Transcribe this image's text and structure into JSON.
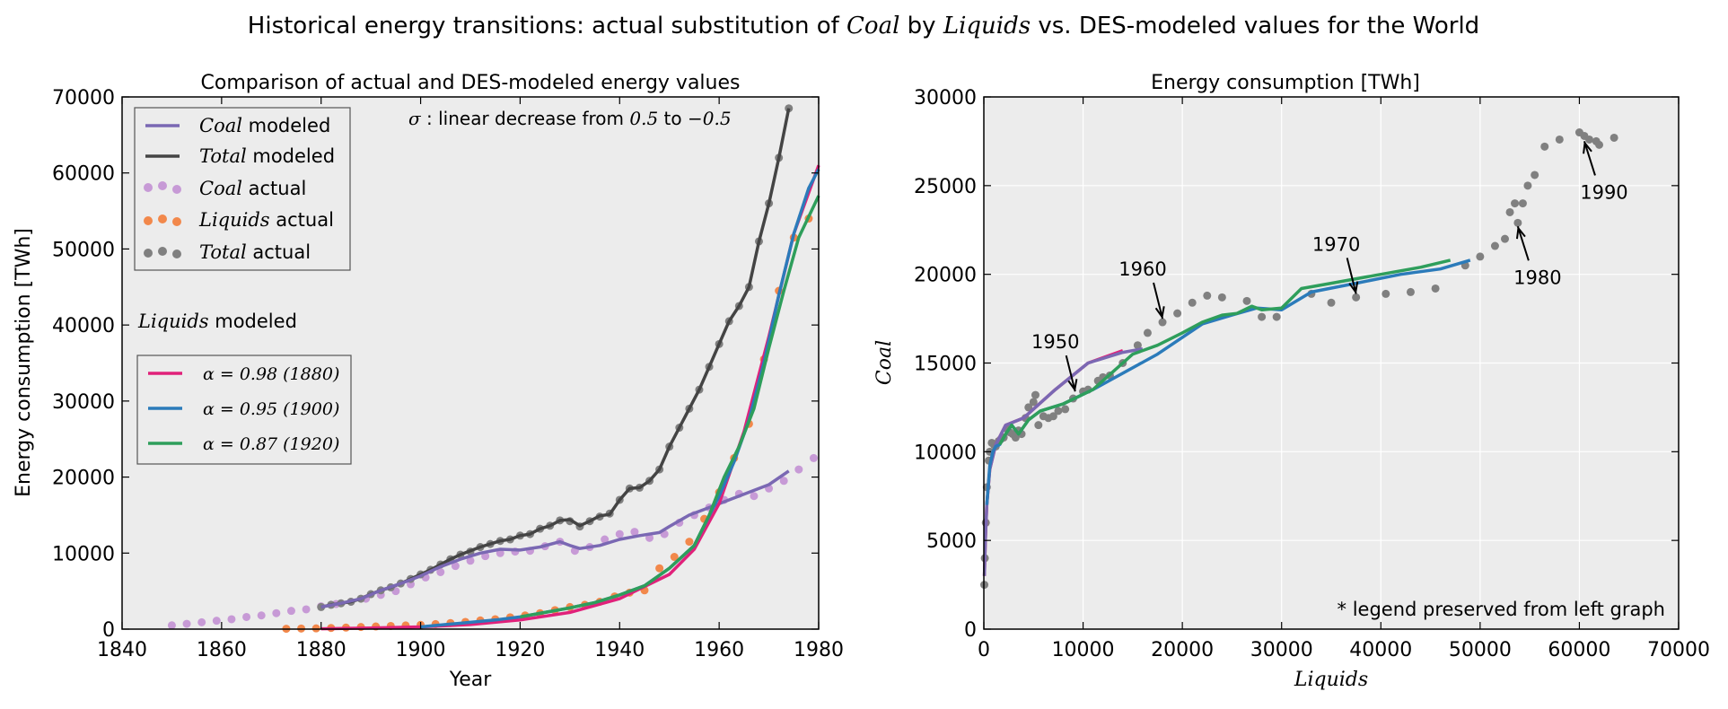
{
  "figure": {
    "title_pre": "Historical energy transitions: actual substitution of ",
    "title_coal": "Coal",
    "title_mid": " by ",
    "title_liquids": "Liquids",
    "title_post": " vs. DES-modeled values for the World"
  },
  "chart_data": [
    {
      "type": "line",
      "title": "Comparison of actual and DES-modeled energy values",
      "xlabel": "Year",
      "ylabel": "Energy consumption [TWh]",
      "xlim": [
        1840,
        1980
      ],
      "ylim": [
        0,
        70000
      ],
      "xticks": [
        "1840",
        "1860",
        "1880",
        "1900",
        "1920",
        "1940",
        "1960",
        "1980"
      ],
      "yticks": [
        "0",
        "10000",
        "20000",
        "30000",
        "40000",
        "50000",
        "60000",
        "70000"
      ],
      "grid": false,
      "background": "#ececec",
      "annotation": {
        "sigma": "σ",
        "pre": " : linear decrease from ",
        "a": "0.5",
        "mid": " to ",
        "b": "−0.5"
      },
      "legend1": {
        "placement": "top-left",
        "entries": [
          {
            "name": "Coal",
            "suffix": " modeled",
            "kind": "line",
            "color": "#7a68b3"
          },
          {
            "name": "Total",
            "suffix": " modeled",
            "kind": "line",
            "color": "#444444"
          },
          {
            "name": "Coal",
            "suffix": " actual",
            "kind": "dots",
            "color": "#c79ad6"
          },
          {
            "name": "Liquids",
            "suffix": " actual",
            "kind": "dots",
            "color": "#f2884b"
          },
          {
            "name": "Total",
            "suffix": " actual",
            "kind": "dots",
            "color": "#808080"
          }
        ]
      },
      "legend2": {
        "title_name": "Liquids",
        "title_suffix": " modeled",
        "placement": "center-left",
        "entries": [
          {
            "label": "α = 0.98 (1880)",
            "color": "#e0217a"
          },
          {
            "label": "α = 0.95 (1900)",
            "color": "#2b7bba"
          },
          {
            "label": "α = 0.87 (1920)",
            "color": "#2e9e5b"
          }
        ]
      },
      "series": [
        {
          "name": "Coal actual",
          "color": "#c79ad6",
          "kind": "scatter",
          "x": [
            1850,
            1853,
            1856,
            1859,
            1862,
            1865,
            1868,
            1871,
            1874,
            1877,
            1880,
            1883,
            1886,
            1889,
            1892,
            1895,
            1898,
            1901,
            1904,
            1907,
            1910,
            1913,
            1916,
            1919,
            1922,
            1925,
            1928,
            1931,
            1934,
            1937,
            1940,
            1943,
            1946,
            1949,
            1952,
            1955,
            1958,
            1961,
            1964,
            1967,
            1970,
            1973,
            1976,
            1979
          ],
          "y": [
            500,
            700,
            900,
            1100,
            1300,
            1600,
            1800,
            2100,
            2400,
            2600,
            3000,
            3300,
            3600,
            4000,
            4500,
            5000,
            5900,
            6800,
            7500,
            8300,
            9000,
            9600,
            10000,
            10200,
            10300,
            10900,
            11500,
            10300,
            10800,
            11800,
            12500,
            12800,
            12000,
            12500,
            14000,
            15000,
            16000,
            17000,
            17800,
            17500,
            18500,
            19500,
            21000,
            22500
          ]
        },
        {
          "name": "Liquids actual",
          "color": "#f2884b",
          "kind": "scatter",
          "x": [
            1873,
            1876,
            1879,
            1882,
            1885,
            1888,
            1891,
            1894,
            1897,
            1900,
            1903,
            1906,
            1909,
            1912,
            1915,
            1918,
            1921,
            1924,
            1927,
            1930,
            1933,
            1936,
            1939,
            1942,
            1945,
            1948,
            1951,
            1954,
            1957,
            1960,
            1963,
            1966,
            1969,
            1972,
            1975,
            1978
          ],
          "y": [
            50,
            80,
            100,
            150,
            200,
            280,
            350,
            420,
            480,
            560,
            660,
            800,
            950,
            1150,
            1300,
            1550,
            1800,
            2100,
            2500,
            2900,
            3200,
            3600,
            4300,
            4800,
            5100,
            8000,
            9500,
            11500,
            14500,
            18000,
            22500,
            27000,
            35500,
            44500,
            51500,
            54000
          ]
        },
        {
          "name": "Total actual",
          "color": "#808080",
          "kind": "scatter",
          "x": [
            1880,
            1882,
            1884,
            1886,
            1888,
            1890,
            1892,
            1894,
            1896,
            1898,
            1900,
            1902,
            1904,
            1906,
            1908,
            1910,
            1912,
            1914,
            1916,
            1918,
            1920,
            1922,
            1924,
            1926,
            1928,
            1930,
            1932,
            1934,
            1936,
            1938,
            1940,
            1942,
            1944,
            1946,
            1948,
            1950,
            1952,
            1954,
            1956,
            1958,
            1960,
            1962,
            1964,
            1966,
            1968,
            1970,
            1972,
            1974
          ],
          "y": [
            2900,
            3200,
            3400,
            3600,
            4000,
            4600,
            5100,
            5500,
            6000,
            6600,
            7200,
            7800,
            8500,
            9200,
            9800,
            10200,
            10800,
            11200,
            11600,
            11800,
            12300,
            12500,
            13200,
            13600,
            14300,
            14200,
            13500,
            14200,
            14800,
            15200,
            17000,
            18500,
            18600,
            19500,
            21000,
            24000,
            26500,
            29000,
            31500,
            34500,
            37500,
            40500,
            42500,
            45000,
            51000,
            56000,
            62000,
            68500
          ]
        },
        {
          "name": "Total modeled",
          "color": "#444444",
          "kind": "line",
          "x": [
            1880,
            1882,
            1884,
            1886,
            1888,
            1890,
            1892,
            1894,
            1896,
            1898,
            1900,
            1902,
            1904,
            1906,
            1908,
            1910,
            1912,
            1914,
            1916,
            1918,
            1920,
            1922,
            1924,
            1926,
            1928,
            1930,
            1932,
            1934,
            1936,
            1938,
            1940,
            1942,
            1944,
            1946,
            1948,
            1950,
            1952,
            1954,
            1956,
            1958,
            1960,
            1962,
            1964,
            1966,
            1968,
            1970,
            1972,
            1974
          ],
          "y": [
            2900,
            3200,
            3400,
            3600,
            4000,
            4600,
            5100,
            5500,
            6000,
            6600,
            7200,
            7800,
            8500,
            9200,
            9800,
            10300,
            10800,
            11200,
            11600,
            11800,
            12300,
            12500,
            13200,
            13600,
            14300,
            14400,
            13600,
            14200,
            14900,
            15100,
            17000,
            18500,
            18600,
            19500,
            21000,
            24000,
            26500,
            29000,
            31500,
            34500,
            37500,
            40500,
            42500,
            45000,
            51000,
            56000,
            62000,
            68500
          ]
        },
        {
          "name": "Coal modeled",
          "color": "#7a68b3",
          "kind": "line",
          "x": [
            1880,
            1884,
            1888,
            1892,
            1896,
            1900,
            1904,
            1908,
            1912,
            1916,
            1920,
            1924,
            1928,
            1930,
            1932,
            1936,
            1940,
            1944,
            1948,
            1950,
            1954,
            1958,
            1962,
            1966,
            1970,
            1974
          ],
          "y": [
            2900,
            3400,
            4000,
            5100,
            6000,
            7000,
            8200,
            9200,
            10000,
            10500,
            10400,
            10800,
            11500,
            11000,
            10600,
            11000,
            11800,
            12300,
            12700,
            13500,
            15000,
            16000,
            17000,
            18000,
            19000,
            20800
          ]
        },
        {
          "name": "α = 0.98 (1880)",
          "color": "#e0217a",
          "kind": "line",
          "x": [
            1880,
            1890,
            1900,
            1910,
            1920,
            1930,
            1940,
            1950,
            1955,
            1960,
            1965,
            1970,
            1975,
            1980
          ],
          "y": [
            50,
            150,
            300,
            600,
            1200,
            2200,
            4000,
            7200,
            10500,
            16500,
            26000,
            38500,
            52000,
            61000
          ]
        },
        {
          "name": "α = 0.95 (1900)",
          "color": "#2b7bba",
          "kind": "line",
          "x": [
            1900,
            1905,
            1910,
            1915,
            1920,
            1925,
            1930,
            1935,
            1940,
            1945,
            1950,
            1955,
            1960,
            1963,
            1966,
            1969,
            1972,
            1975,
            1978,
            1980
          ],
          "y": [
            300,
            600,
            900,
            1200,
            1600,
            2200,
            2800,
            3500,
            4500,
            5700,
            8000,
            11000,
            17500,
            22000,
            27500,
            35000,
            44000,
            52000,
            58000,
            60500
          ]
        },
        {
          "name": "α = 0.87 (1920)",
          "color": "#2e9e5b",
          "kind": "line",
          "x": [
            1920,
            1925,
            1930,
            1935,
            1940,
            1945,
            1950,
            1955,
            1958,
            1961,
            1964,
            1967,
            1970,
            1973,
            1976,
            1980
          ],
          "y": [
            1600,
            2200,
            2800,
            3500,
            4500,
            5700,
            8000,
            11000,
            15000,
            20000,
            24000,
            29000,
            37000,
            44500,
            51500,
            57000
          ]
        }
      ]
    },
    {
      "type": "scatter",
      "title": "Energy consumption [TWh]",
      "xlabel": "Liquids",
      "ylabel": "Coal",
      "xlim": [
        0,
        70000
      ],
      "ylim": [
        0,
        30000
      ],
      "xticks": [
        "0",
        "10000",
        "20000",
        "30000",
        "40000",
        "50000",
        "60000",
        "70000"
      ],
      "yticks": [
        "0",
        "5000",
        "10000",
        "15000",
        "20000",
        "25000",
        "30000"
      ],
      "grid": true,
      "background": "#ececec",
      "footnote": "* legend preserved from left graph",
      "annotations": [
        {
          "text": "1950",
          "x": 9200,
          "y": 13200
        },
        {
          "text": "1960",
          "x": 18000,
          "y": 17300
        },
        {
          "text": "1970",
          "x": 37500,
          "y": 18700
        },
        {
          "text": "1980",
          "x": 53800,
          "y": 22900
        },
        {
          "text": "1990",
          "x": 60500,
          "y": 27700
        }
      ],
      "series": [
        {
          "name": "Total actual",
          "color": "#808080",
          "kind": "scatter",
          "x": [
            50,
            100,
            200,
            300,
            500,
            600,
            800,
            1000,
            1200,
            1500,
            1700,
            2000,
            2300,
            2600,
            2900,
            3200,
            3500,
            3800,
            4200,
            4500,
            5000,
            5200,
            5500,
            6000,
            6500,
            7000,
            7500,
            8200,
            9000,
            10000,
            10500,
            11500,
            12000,
            12700,
            14000,
            15500,
            16500,
            18000,
            19500,
            21000,
            22500,
            24000,
            26500,
            28000,
            29500,
            33000,
            35000,
            37500,
            40500,
            43000,
            45500,
            48500,
            50000,
            51500,
            52500,
            53000,
            53500,
            53800,
            54300,
            54800,
            55500,
            56500,
            58000,
            60000,
            60500,
            61000,
            61700,
            62000,
            63500
          ],
          "y": [
            2500,
            4000,
            6000,
            8000,
            9500,
            10000,
            10500,
            10400,
            10300,
            10600,
            10700,
            10800,
            11300,
            11100,
            11000,
            10800,
            11200,
            11000,
            11900,
            12500,
            12800,
            13200,
            11500,
            12000,
            11900,
            12000,
            12300,
            12400,
            13000,
            13400,
            13500,
            14000,
            14200,
            14300,
            15000,
            16000,
            16700,
            17300,
            17800,
            18400,
            18800,
            18700,
            18500,
            17600,
            17600,
            18900,
            18400,
            18700,
            18900,
            19000,
            19200,
            20500,
            21000,
            21600,
            22000,
            23500,
            24000,
            22900,
            24000,
            25000,
            25600,
            27200,
            27600,
            28000,
            27800,
            27600,
            27500,
            27300,
            27700
          ]
        },
        {
          "name": "α = 0.98 (1880)",
          "color": "#e0217a",
          "kind": "line",
          "x": [
            50,
            150,
            300,
            600,
            1200,
            2200,
            4000,
            7200,
            10500,
            14000
          ],
          "y": [
            3000,
            5000,
            7000,
            9000,
            10400,
            11500,
            11900,
            13500,
            15000,
            15700
          ]
        },
        {
          "name": "Coal modeled",
          "color": "#7a68b3",
          "kind": "line",
          "x": [
            50,
            150,
            300,
            600,
            1200,
            2200,
            4000,
            7200,
            10500,
            14000,
            16000
          ],
          "y": [
            3000,
            5000,
            7000,
            9000,
            10400,
            11500,
            11900,
            13500,
            15000,
            15600,
            15800
          ]
        },
        {
          "name": "α = 0.95 (1900)",
          "color": "#2b7bba",
          "kind": "line",
          "x": [
            300,
            600,
            900,
            1200,
            1600,
            2200,
            2800,
            3500,
            4500,
            5700,
            8000,
            11000,
            17500,
            22000,
            25000,
            27500,
            30000,
            33000,
            37500,
            42000,
            46000,
            49000
          ],
          "y": [
            7000,
            9200,
            10000,
            10300,
            10400,
            11000,
            11500,
            11000,
            11800,
            12300,
            12700,
            13500,
            15500,
            17200,
            17700,
            18100,
            18000,
            19000,
            19500,
            20000,
            20300,
            20800
          ]
        },
        {
          "name": "α = 0.87 (1920)",
          "color": "#2e9e5b",
          "kind": "line",
          "x": [
            1600,
            2200,
            2800,
            3500,
            4500,
            5700,
            8000,
            11000,
            15000,
            17500,
            20000,
            22000,
            24000,
            25500,
            27000,
            28000,
            30000,
            32000,
            35000,
            40000,
            44000,
            47000
          ],
          "y": [
            10400,
            11000,
            11500,
            11000,
            11800,
            12300,
            12700,
            13500,
            15500,
            16000,
            16700,
            17300,
            17700,
            17800,
            18200,
            18000,
            18100,
            19200,
            19500,
            20000,
            20400,
            20800
          ]
        }
      ]
    }
  ]
}
